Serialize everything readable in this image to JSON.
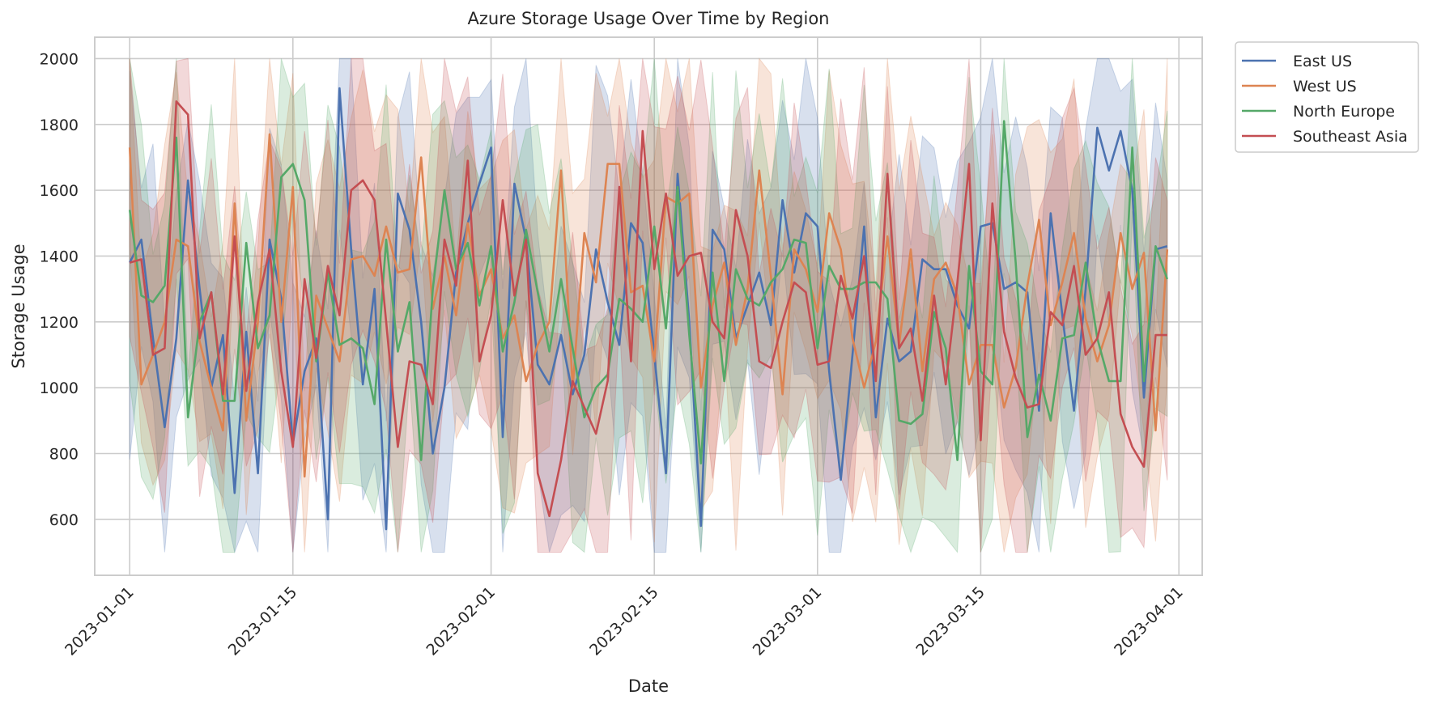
{
  "chart_data": {
    "type": "line",
    "title": "Azure Storage Usage Over Time by Region",
    "xlabel": "Date",
    "ylabel": "Storage Usage",
    "x_start": "2023-01-01",
    "x_end": "2023-03-31",
    "xlim": [
      "2022-12-29",
      "2023-04-03"
    ],
    "ylim": [
      430,
      2065
    ],
    "x_ticks": [
      "2023-01-01",
      "2023-01-15",
      "2023-02-01",
      "2023-02-15",
      "2023-03-01",
      "2023-03-15",
      "2023-04-01"
    ],
    "y_ticks": [
      600,
      800,
      1000,
      1200,
      1400,
      1600,
      1800,
      2000
    ],
    "grid": true,
    "legend_position": "outside-top-right",
    "confidence_band_opacity": 0.22,
    "series": [
      {
        "name": "East US",
        "color": "#4c72b0",
        "values": [
          1380,
          1450,
          1150,
          880,
          1150,
          1630,
          1300,
          1000,
          1160,
          680,
          1170,
          740,
          1450,
          1270,
          830,
          1050,
          1150,
          600,
          1910,
          1420,
          1010,
          1300,
          570,
          1590,
          1480,
          1200,
          800,
          1000,
          1350,
          1500,
          1620,
          1730,
          850,
          1620,
          1450,
          1070,
          1010,
          1160,
          980,
          1100,
          1420,
          1260,
          1130,
          1500,
          1440,
          1100,
          740,
          1650,
          1200,
          580,
          1480,
          1420,
          1150,
          1250,
          1350,
          1190,
          1570,
          1350,
          1530,
          1490,
          1050,
          720,
          1100,
          1490,
          910,
          1210,
          1080,
          1110,
          1390,
          1360,
          1360,
          1250,
          1180,
          1490,
          1500,
          1300,
          1320,
          1290,
          930,
          1530,
          1220,
          930,
          1300,
          1790,
          1660,
          1780,
          1600,
          970,
          1420,
          1430
        ]
      },
      {
        "name": "West US",
        "color": "#dd8452",
        "values": [
          1730,
          1010,
          1100,
          1200,
          1450,
          1430,
          1140,
          1000,
          870,
          1560,
          900,
          1200,
          1770,
          1200,
          1610,
          730,
          1280,
          1180,
          1080,
          1390,
          1400,
          1340,
          1490,
          1350,
          1360,
          1700,
          1240,
          1400,
          1220,
          1500,
          1280,
          1360,
          1150,
          1220,
          1020,
          1130,
          1200,
          1660,
          1000,
          1470,
          1320,
          1680,
          1680,
          1290,
          1310,
          1080,
          1580,
          1560,
          1590,
          1000,
          1250,
          1380,
          1130,
          1300,
          1660,
          1340,
          980,
          1420,
          1360,
          1230,
          1530,
          1420,
          1150,
          1000,
          1140,
          1460,
          1130,
          1420,
          1050,
          1330,
          1380,
          1280,
          1010,
          1130,
          1130,
          940,
          1060,
          1310,
          1510,
          1190,
          1320,
          1470,
          1210,
          1080,
          1190,
          1470,
          1300,
          1410,
          870,
          1420
        ]
      },
      {
        "name": "North Europe",
        "color": "#55a868",
        "values": [
          1540,
          1280,
          1260,
          1310,
          1760,
          910,
          1200,
          1290,
          960,
          960,
          1440,
          1120,
          1220,
          1640,
          1680,
          1570,
          1080,
          1350,
          1130,
          1150,
          1120,
          950,
          1450,
          1110,
          1260,
          780,
          1300,
          1600,
          1360,
          1440,
          1250,
          1430,
          1110,
          1260,
          1480,
          1290,
          1110,
          1330,
          1120,
          910,
          1000,
          1040,
          1270,
          1240,
          1200,
          1490,
          1180,
          1610,
          1160,
          770,
          1350,
          1020,
          1360,
          1270,
          1250,
          1320,
          1360,
          1450,
          1440,
          1120,
          1370,
          1300,
          1300,
          1320,
          1320,
          1270,
          900,
          890,
          920,
          1230,
          1120,
          780,
          1370,
          1050,
          1010,
          1810,
          1380,
          850,
          1040,
          900,
          1150,
          1160,
          1380,
          1150,
          1020,
          1020,
          1730,
          1020,
          1430,
          1330
        ]
      },
      {
        "name": "Southeast Asia",
        "color": "#c44e52",
        "values": [
          1380,
          1390,
          1100,
          1120,
          1870,
          1830,
          1150,
          1290,
          980,
          1460,
          990,
          1260,
          1420,
          1050,
          820,
          1330,
          1090,
          1370,
          1220,
          1600,
          1630,
          1570,
          1200,
          820,
          1080,
          1070,
          950,
          1450,
          1310,
          1690,
          1080,
          1220,
          1570,
          1280,
          1450,
          740,
          610,
          780,
          1020,
          940,
          860,
          1020,
          1610,
          1080,
          1780,
          1360,
          1590,
          1340,
          1400,
          1410,
          1200,
          1150,
          1540,
          1400,
          1080,
          1060,
          1200,
          1320,
          1290,
          1070,
          1080,
          1340,
          1210,
          1400,
          1020,
          1650,
          1120,
          1180,
          960,
          1280,
          1010,
          1320,
          1680,
          840,
          1560,
          1170,
          1030,
          940,
          950,
          1230,
          1190,
          1370,
          1100,
          1150,
          1290,
          920,
          820,
          760,
          1160,
          1160
        ]
      }
    ]
  }
}
